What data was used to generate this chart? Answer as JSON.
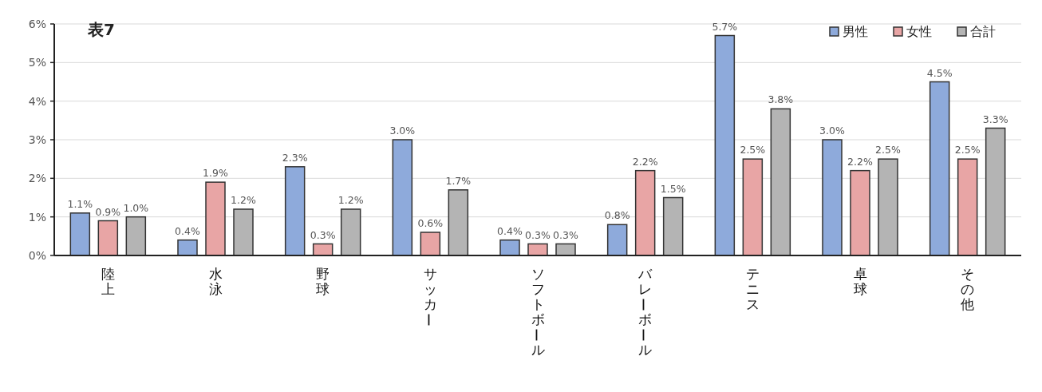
{
  "chart_data": {
    "type": "bar",
    "title": "表7",
    "categories": [
      "陸上",
      "水泳",
      "野球",
      "サッカー",
      "ソフトボール",
      "バレーボール",
      "テニス",
      "卓球",
      "その他"
    ],
    "series": [
      {
        "name": "男性",
        "color": "#8eaadb",
        "values": [
          1.1,
          0.4,
          2.3,
          3.0,
          0.4,
          0.8,
          5.7,
          3.0,
          4.5
        ],
        "value_labels": [
          "1.1%",
          "0.4%",
          "2.3%",
          "3.0%",
          "0.4%",
          "0.8%",
          "5.7%",
          "3.0%",
          "4.5%"
        ]
      },
      {
        "name": "女性",
        "color": "#e8a5a5",
        "values": [
          0.9,
          1.9,
          0.3,
          0.6,
          0.3,
          2.2,
          2.5,
          2.2,
          2.5
        ],
        "value_labels": [
          "0.9%",
          "1.9%",
          "0.3%",
          "0.6%",
          "0.3%",
          "2.2%",
          "2.5%",
          "2.2%",
          "2.5%"
        ]
      },
      {
        "name": "合計",
        "color": "#b4b4b4",
        "values": [
          1.0,
          1.2,
          1.2,
          1.7,
          0.3,
          1.5,
          3.8,
          2.5,
          3.3
        ],
        "value_labels": [
          "1.0%",
          "1.2%",
          "1.2%",
          "1.7%",
          "0.3%",
          "1.5%",
          "3.8%",
          "2.5%",
          "3.3%"
        ]
      }
    ],
    "ylim": [
      0,
      6
    ],
    "yticks": [
      {
        "value": 0,
        "label": "0%"
      },
      {
        "value": 1,
        "label": "1%"
      },
      {
        "value": 2,
        "label": "2%"
      },
      {
        "value": 3,
        "label": "3%"
      },
      {
        "value": 4,
        "label": "4%"
      },
      {
        "value": 5,
        "label": "5%"
      },
      {
        "value": 6,
        "label": "6%"
      }
    ],
    "grid": "y",
    "legend": "top right"
  }
}
